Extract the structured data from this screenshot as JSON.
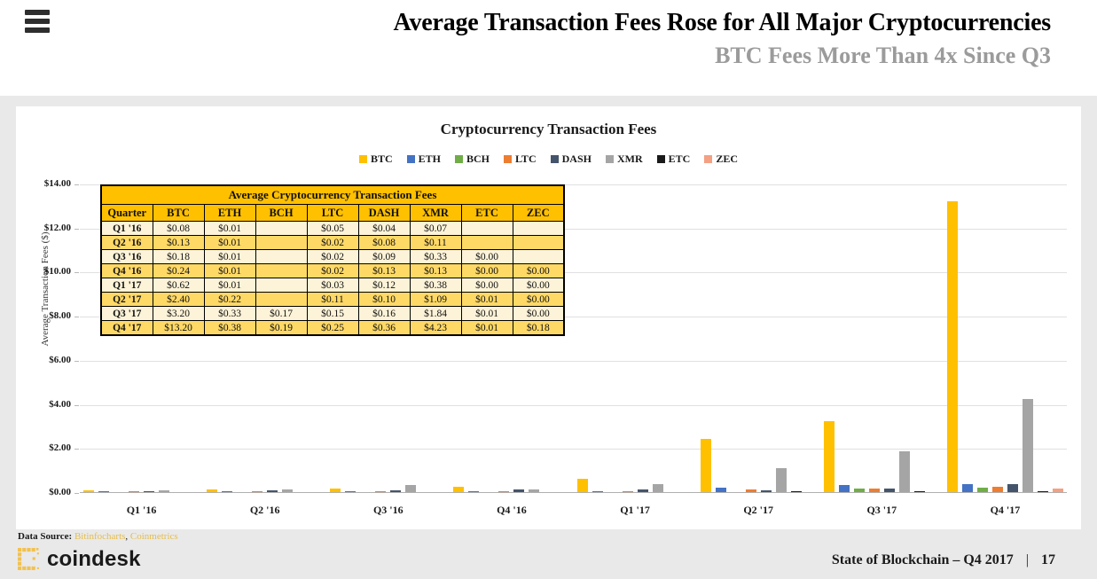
{
  "header": {
    "title": "Average Transaction Fees Rose for All Major Cryptocurrencies",
    "subtitle": "BTC Fees More Than 4x Since Q3"
  },
  "chart": {
    "title": "Cryptocurrency Transaction Fees",
    "y_axis_title": "Average Transaction Fees ($)",
    "y_ticks": [
      "$14.00",
      "$12.00",
      "$10.00",
      "$8.00",
      "$6.00",
      "$4.00",
      "$2.00",
      "$0.00"
    ]
  },
  "chart_data": {
    "type": "bar",
    "title": "Cryptocurrency Transaction Fees",
    "categories": [
      "Q1 '16",
      "Q2 '16",
      "Q3 '16",
      "Q4 '16",
      "Q1 '17",
      "Q2 '17",
      "Q3 '17",
      "Q4 '17"
    ],
    "series": [
      {
        "name": "BTC",
        "color": "#ffc000",
        "values": [
          0.08,
          0.13,
          0.18,
          0.24,
          0.62,
          2.4,
          3.2,
          13.2
        ]
      },
      {
        "name": "ETH",
        "color": "#4472c4",
        "values": [
          0.01,
          0.01,
          0.01,
          0.01,
          0.01,
          0.22,
          0.33,
          0.38
        ]
      },
      {
        "name": "BCH",
        "color": "#70ad47",
        "values": [
          null,
          null,
          null,
          null,
          null,
          null,
          0.17,
          0.19
        ]
      },
      {
        "name": "LTC",
        "color": "#ed7d31",
        "values": [
          0.05,
          0.02,
          0.02,
          0.02,
          0.03,
          0.11,
          0.15,
          0.25
        ]
      },
      {
        "name": "DASH",
        "color": "#44546a",
        "values": [
          0.04,
          0.08,
          0.09,
          0.13,
          0.12,
          0.1,
          0.16,
          0.36
        ]
      },
      {
        "name": "XMR",
        "color": "#a5a5a5",
        "values": [
          0.07,
          0.11,
          0.33,
          0.13,
          0.38,
          1.09,
          1.84,
          4.23
        ]
      },
      {
        "name": "ETC",
        "color": "#1a1a1a",
        "values": [
          null,
          null,
          0.0,
          0.0,
          0.0,
          0.01,
          0.01,
          0.01
        ]
      },
      {
        "name": "ZEC",
        "color": "#f4a083",
        "values": [
          null,
          null,
          null,
          0.0,
          0.0,
          0.0,
          0.0,
          0.18
        ]
      }
    ],
    "xlabel": "",
    "ylabel": "Average Transaction Fees ($)",
    "ylim": [
      0,
      14
    ],
    "grid": true,
    "legend_position": "top"
  },
  "table": {
    "title": "Average Cryptocurrency Transaction Fees",
    "columns": [
      "Quarter",
      "BTC",
      "ETH",
      "BCH",
      "LTC",
      "DASH",
      "XMR",
      "ETC",
      "ZEC"
    ],
    "rows": [
      [
        "Q1 '16",
        "$0.08",
        "$0.01",
        "",
        "$0.05",
        "$0.04",
        "$0.07",
        "",
        ""
      ],
      [
        "Q2 '16",
        "$0.13",
        "$0.01",
        "",
        "$0.02",
        "$0.08",
        "$0.11",
        "",
        ""
      ],
      [
        "Q3 '16",
        "$0.18",
        "$0.01",
        "",
        "$0.02",
        "$0.09",
        "$0.33",
        "$0.00",
        ""
      ],
      [
        "Q4 '16",
        "$0.24",
        "$0.01",
        "",
        "$0.02",
        "$0.13",
        "$0.13",
        "$0.00",
        "$0.00"
      ],
      [
        "Q1 '17",
        "$0.62",
        "$0.01",
        "",
        "$0.03",
        "$0.12",
        "$0.38",
        "$0.00",
        "$0.00"
      ],
      [
        "Q2 '17",
        "$2.40",
        "$0.22",
        "",
        "$0.11",
        "$0.10",
        "$1.09",
        "$0.01",
        "$0.00"
      ],
      [
        "Q3 '17",
        "$3.20",
        "$0.33",
        "$0.17",
        "$0.15",
        "$0.16",
        "$1.84",
        "$0.01",
        "$0.00"
      ],
      [
        "Q4 '17",
        "$13.20",
        "$0.38",
        "$0.19",
        "$0.25",
        "$0.36",
        "$4.23",
        "$0.01",
        "$0.18"
      ]
    ]
  },
  "footer": {
    "data_source_label": "Data Source:",
    "data_source_links": [
      "Bitinfocharts",
      "Coinmetrics"
    ],
    "brand": "coindesk",
    "report": "State of Blockchain – Q4 2017",
    "separator": "|",
    "page": "17"
  },
  "colors": {
    "accent_gold": "#ffc000",
    "table_row_light": "#fdf3d8",
    "table_row_gold": "#ffd966",
    "background_gray": "#e9e9e9",
    "subtitle_gray": "#9b9b9b"
  }
}
